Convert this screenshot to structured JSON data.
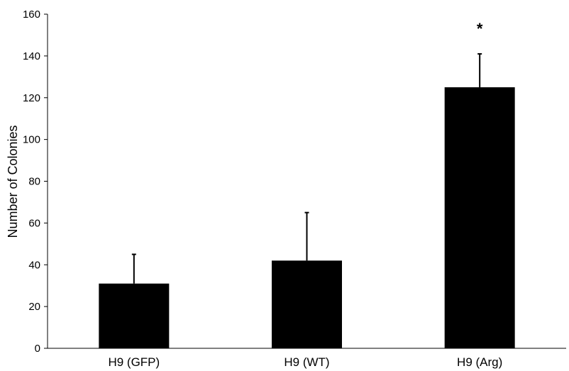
{
  "chart_data": {
    "type": "bar",
    "title": "",
    "xlabel": "",
    "ylabel": "Number of Colonies",
    "ylim": [
      0,
      160
    ],
    "yticks": [
      0,
      20,
      40,
      60,
      80,
      100,
      120,
      140,
      160
    ],
    "categories": [
      "H9 (GFP)",
      "H9 (WT)",
      "H9 (Arg)"
    ],
    "values": [
      31,
      42,
      125
    ],
    "errors": [
      14,
      23,
      16
    ],
    "annotations": [
      "",
      "",
      "*"
    ],
    "bar_color": "#000000",
    "grid": false,
    "legend": "none"
  }
}
